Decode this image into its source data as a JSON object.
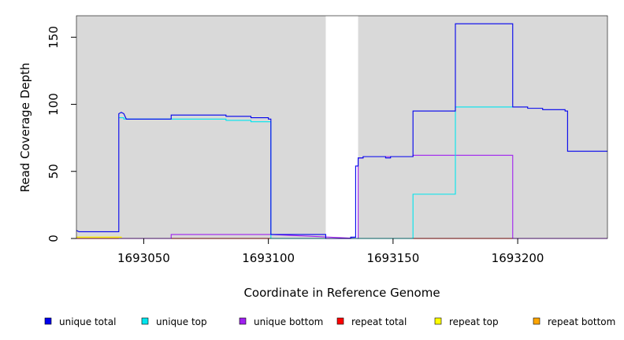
{
  "chart_data": {
    "type": "line",
    "xlabel": "Coordinate in Reference Genome",
    "ylabel": "Read Coverage Depth",
    "xlim": [
      1693023,
      1693236
    ],
    "ylim": [
      0,
      166
    ],
    "x_ticks": [
      1693050,
      1693100,
      1693150,
      1693200
    ],
    "x_tick_labels": [
      "1693050",
      "1693100",
      "1693150",
      "1693200"
    ],
    "y_ticks": [
      0,
      50,
      100,
      150
    ],
    "y_tick_labels": [
      "0",
      "50",
      "100",
      "150"
    ],
    "background_color": "#d9d9d9",
    "shaded_regions": [
      {
        "x_start": 1693023,
        "x_end": 1693123
      },
      {
        "x_start": 1693136,
        "x_end": 1693236
      }
    ],
    "legend_position": "bottom",
    "series": [
      {
        "name": "unique total",
        "color": "#0000ee",
        "points": [
          [
            1693023,
            6
          ],
          [
            1693024,
            5
          ],
          [
            1693040,
            5
          ],
          [
            1693040,
            93
          ],
          [
            1693041,
            94
          ],
          [
            1693042,
            93
          ],
          [
            1693043,
            89
          ],
          [
            1693061,
            89
          ],
          [
            1693061,
            92
          ],
          [
            1693083,
            92
          ],
          [
            1693083,
            91
          ],
          [
            1693093,
            91
          ],
          [
            1693093,
            90
          ],
          [
            1693100,
            90
          ],
          [
            1693100,
            89
          ],
          [
            1693101,
            89
          ],
          [
            1693101,
            3
          ],
          [
            1693123,
            3
          ],
          [
            1693123,
            0
          ],
          [
            1693133,
            0
          ],
          [
            1693133,
            1
          ],
          [
            1693135,
            1
          ],
          [
            1693135,
            54
          ],
          [
            1693136,
            54
          ],
          [
            1693136,
            60
          ],
          [
            1693138,
            60
          ],
          [
            1693138,
            61
          ],
          [
            1693147,
            61
          ],
          [
            1693147,
            60
          ],
          [
            1693149,
            60
          ],
          [
            1693149,
            61
          ],
          [
            1693158,
            61
          ],
          [
            1693158,
            95
          ],
          [
            1693175,
            95
          ],
          [
            1693175,
            160
          ],
          [
            1693198,
            160
          ],
          [
            1693198,
            98
          ],
          [
            1693204,
            98
          ],
          [
            1693204,
            97
          ],
          [
            1693210,
            97
          ],
          [
            1693210,
            96
          ],
          [
            1693219,
            96
          ],
          [
            1693219,
            95
          ],
          [
            1693220,
            95
          ],
          [
            1693220,
            65
          ],
          [
            1693236,
            65
          ]
        ]
      },
      {
        "name": "unique top",
        "color": "#00e5ee",
        "points": [
          [
            1693040,
            90
          ],
          [
            1693042,
            90
          ],
          [
            1693042,
            89
          ],
          [
            1693061,
            89
          ],
          [
            1693083,
            89
          ],
          [
            1693083,
            88
          ],
          [
            1693093,
            88
          ],
          [
            1693093,
            87
          ],
          [
            1693101,
            87
          ],
          [
            1693101,
            0
          ],
          [
            1693123,
            0
          ],
          [
            1693136,
            0
          ],
          [
            1693158,
            0
          ],
          [
            1693158,
            33
          ],
          [
            1693175,
            33
          ],
          [
            1693175,
            98
          ],
          [
            1693198,
            98
          ]
        ]
      },
      {
        "name": "unique bottom",
        "color": "#a020f0",
        "points": [
          [
            1693040,
            0
          ],
          [
            1693061,
            0
          ],
          [
            1693061,
            3
          ],
          [
            1693101,
            3
          ],
          [
            1693136,
            0
          ],
          [
            1693136,
            60
          ],
          [
            1693138,
            60
          ],
          [
            1693138,
            61
          ],
          [
            1693149,
            61
          ],
          [
            1693158,
            61
          ],
          [
            1693158,
            62
          ],
          [
            1693198,
            62
          ],
          [
            1693198,
            0
          ],
          [
            1693236,
            0
          ]
        ]
      },
      {
        "name": "repeat total",
        "color": "#ff0000",
        "points": [
          [
            1693023,
            0
          ],
          [
            1693123,
            0
          ],
          [
            1693136,
            0
          ],
          [
            1693236,
            0
          ]
        ]
      },
      {
        "name": "repeat top",
        "color": "#ffff00",
        "points": [
          [
            1693023,
            1
          ],
          [
            1693041,
            1
          ],
          [
            1693041,
            0
          ],
          [
            1693123,
            0
          ]
        ]
      },
      {
        "name": "repeat bottom",
        "color": "#ffa500",
        "points": [
          [
            1693023,
            1
          ],
          [
            1693041,
            1
          ],
          [
            1693041,
            0
          ],
          [
            1693123,
            0
          ],
          [
            1693136,
            0
          ],
          [
            1693236,
            0
          ]
        ]
      }
    ]
  }
}
